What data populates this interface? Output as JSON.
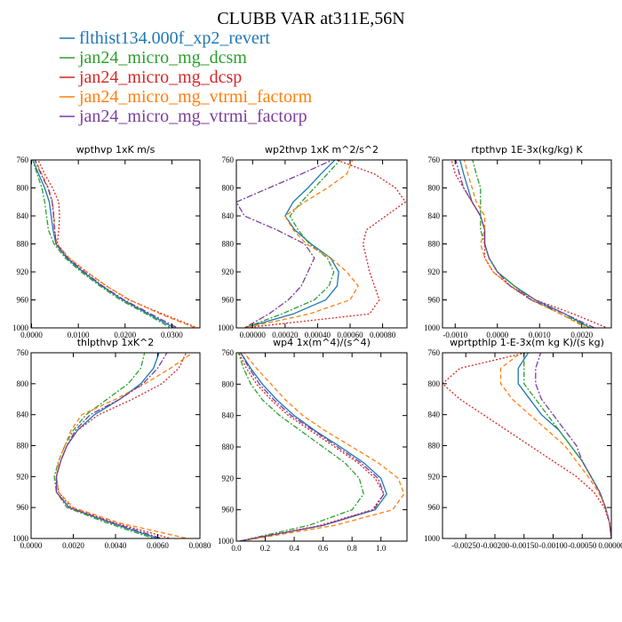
{
  "figure_title": "CLUBB VAR at311E,56N",
  "colors": {
    "flthist134.000f_xp2_revert": "#1f77b4",
    "jan24_micro_mg_dcsm": "#2ca02c",
    "jan24_micro_mg_dcsp": "#d62728",
    "jan24_micro_mg_vtrmi_factorm": "#ff7f0e",
    "jan24_micro_mg_vtrmi_factorp": "#7b3f9e"
  },
  "legend": [
    {
      "name": "flthist134.000f_xp2_revert",
      "color": "#1f77b4",
      "dash": ""
    },
    {
      "name": "jan24_micro_mg_dcsm",
      "color": "#2ca02c",
      "dash": "6,2,2,2"
    },
    {
      "name": "jan24_micro_mg_dcsp",
      "color": "#d62728",
      "dash": "2,2"
    },
    {
      "name": "jan24_micro_mg_vtrmi_factorm",
      "color": "#ff7f0e",
      "dash": "5,3"
    },
    {
      "name": "jan24_micro_mg_vtrmi_factorp",
      "color": "#7b3f9e",
      "dash": "7,2,2,2"
    }
  ],
  "chart_data": [
    {
      "type": "line",
      "title": "wpthvp  1xK m/s",
      "xlim": [
        -0.0001,
        0.036
      ],
      "ylim": [
        760,
        1000
      ],
      "y_reversed": true,
      "xticks": [
        0.0,
        0.01,
        0.02,
        0.03
      ],
      "xtick_labels": [
        "0.0000",
        "0.0100",
        "0.0200",
        "0.0300"
      ],
      "yticks": [
        760,
        800,
        840,
        880,
        920,
        960,
        1000
      ],
      "ytick_labels": [
        "760",
        "800",
        "840",
        "880",
        "920",
        "960",
        "1000"
      ],
      "y": [
        757,
        780,
        800,
        820,
        840,
        860,
        880,
        900,
        920,
        940,
        960,
        980,
        1000
      ],
      "series": [
        {
          "name": "flthist134.000f_xp2_revert",
          "x": [
            0.0001,
            0.0015,
            0.0028,
            0.0038,
            0.0042,
            0.0046,
            0.0052,
            0.0075,
            0.011,
            0.015,
            0.0195,
            0.025,
            0.0305
          ]
        },
        {
          "name": "jan24_micro_mg_dcsm",
          "x": [
            0.0001,
            0.0012,
            0.0022,
            0.0028,
            0.0032,
            0.0036,
            0.0048,
            0.0072,
            0.0106,
            0.0146,
            0.019,
            0.0245,
            0.0298
          ]
        },
        {
          "name": "jan24_micro_mg_dcsp",
          "x": [
            0.0012,
            0.0028,
            0.0045,
            0.0058,
            0.006,
            0.0058,
            0.0055,
            0.008,
            0.0118,
            0.016,
            0.0208,
            0.028,
            0.0355
          ]
        },
        {
          "name": "jan24_micro_mg_vtrmi_factorm",
          "x": [
            0.0006,
            0.0022,
            0.0036,
            0.0045,
            0.0048,
            0.005,
            0.0054,
            0.008,
            0.0118,
            0.016,
            0.021,
            0.0275,
            0.035
          ]
        },
        {
          "name": "jan24_micro_mg_vtrmi_factorp",
          "x": [
            0.0005,
            0.002,
            0.0035,
            0.0044,
            0.0047,
            0.0049,
            0.0053,
            0.0077,
            0.0113,
            0.0152,
            0.0198,
            0.0255,
            0.0312
          ]
        }
      ]
    },
    {
      "type": "line",
      "title": "wp2thvp  1xK m^2/s^2",
      "xlim": [
        -0.0001,
        0.00095
      ],
      "ylim": [
        760,
        1000
      ],
      "y_reversed": true,
      "xticks": [
        0.0,
        0.0002,
        0.0004,
        0.0006,
        0.0008
      ],
      "xtick_labels": [
        "0.00000",
        "0.00020",
        "0.00040",
        "0.00060",
        "0.00080"
      ],
      "yticks": [
        760,
        800,
        840,
        880,
        920,
        960,
        1000
      ],
      "ytick_labels": [
        "760",
        "800",
        "840",
        "880",
        "920",
        "960",
        "1000"
      ],
      "y": [
        757,
        780,
        800,
        820,
        840,
        860,
        880,
        900,
        920,
        940,
        960,
        980,
        1000
      ],
      "series": [
        {
          "name": "flthist134.000f_xp2_revert",
          "x": [
            0.00052,
            0.00042,
            0.00034,
            0.00025,
            0.0002,
            0.00026,
            0.00036,
            0.00048,
            0.00053,
            0.00052,
            0.00045,
            0.00025,
            -5e-05
          ]
        },
        {
          "name": "jan24_micro_mg_dcsm",
          "x": [
            0.00055,
            0.00046,
            0.00038,
            0.0003,
            0.00023,
            0.00028,
            0.00035,
            0.00046,
            0.0005,
            0.00047,
            0.00038,
            0.00018,
            -5e-05
          ]
        },
        {
          "name": "jan24_micro_mg_dcsp",
          "x": [
            0.00048,
            0.00075,
            0.00088,
            0.00094,
            0.00082,
            0.0007,
            0.00068,
            0.0007,
            0.00072,
            0.00075,
            0.00078,
            0.00072,
            -5e-05
          ]
        },
        {
          "name": "jan24_micro_mg_vtrmi_factorm",
          "x": [
            0.00062,
            0.00058,
            0.00046,
            0.00032,
            0.0002,
            0.00025,
            0.00033,
            0.00048,
            0.00058,
            0.00065,
            0.0006,
            0.00035,
            -5e-05
          ]
        },
        {
          "name": "jan24_micro_mg_vtrmi_factorp",
          "x": [
            0.00052,
            0.0003,
            0.0001,
            -0.0001,
            -5e-05,
            0.00015,
            0.00032,
            0.00038,
            0.00034,
            0.0003,
            0.00022,
            0.0001,
            -5e-05
          ]
        }
      ]
    },
    {
      "type": "line",
      "title": "rtpthvp  1E-3x(kg/kg) K",
      "xlim": [
        -0.0013,
        0.0027
      ],
      "ylim": [
        760,
        1000
      ],
      "y_reversed": true,
      "xticks": [
        -0.001,
        0.0,
        0.001,
        0.002
      ],
      "xtick_labels": [
        "-0.0010",
        "0.0000",
        "0.0010",
        "0.0020"
      ],
      "yticks": [
        760,
        800,
        840,
        880,
        920,
        960,
        1000
      ],
      "ytick_labels": [
        "760",
        "800",
        "840",
        "880",
        "920",
        "960",
        "1000"
      ],
      "y": [
        757,
        780,
        800,
        820,
        840,
        860,
        880,
        900,
        920,
        940,
        960,
        980,
        1000
      ],
      "series": [
        {
          "name": "flthist134.000f_xp2_revert",
          "x": [
            -0.0009,
            -0.0008,
            -0.0007,
            -0.0006,
            -0.0004,
            -0.0003,
            -0.0003,
            -0.0002,
            0.0,
            0.0004,
            0.0009,
            0.0016,
            0.0022
          ]
        },
        {
          "name": "jan24_micro_mg_dcsm",
          "x": [
            -0.0006,
            -0.0005,
            -0.0004,
            -0.0004,
            -0.0004,
            -0.0004,
            -0.0003,
            -0.0002,
            0.0,
            0.0004,
            0.0008,
            0.0015,
            0.0022
          ]
        },
        {
          "name": "jan24_micro_mg_dcsp",
          "x": [
            -0.0011,
            -0.001,
            -0.0008,
            -0.0006,
            -0.0004,
            -0.0003,
            -0.0003,
            -0.0003,
            -0.0001,
            0.0003,
            0.0009,
            0.0018,
            0.0026
          ]
        },
        {
          "name": "jan24_micro_mg_vtrmi_factorm",
          "x": [
            -0.0008,
            -0.0007,
            -0.0006,
            -0.0005,
            -0.0003,
            -0.0003,
            -0.0004,
            -0.0003,
            -0.0001,
            0.0003,
            0.0008,
            0.0015,
            0.0021
          ]
        },
        {
          "name": "jan24_micro_mg_vtrmi_factorp",
          "x": [
            -0.001,
            -0.0009,
            -0.0008,
            -0.0006,
            -0.0004,
            -0.0003,
            -0.0003,
            -0.0002,
            0.0,
            0.0003,
            0.0008,
            0.0016,
            0.0023
          ]
        }
      ]
    },
    {
      "type": "line",
      "title": "thlpthvp  1xK^2",
      "xlim": [
        0.0,
        0.008
      ],
      "ylim": [
        760,
        1000
      ],
      "y_reversed": true,
      "xticks": [
        0.0,
        0.002,
        0.004,
        0.006,
        0.008
      ],
      "xtick_labels": [
        "0.0000",
        "0.0020",
        "0.0040",
        "0.0060",
        "0.0080"
      ],
      "yticks": [
        760,
        800,
        840,
        880,
        920,
        960,
        1000
      ],
      "ytick_labels": [
        "760",
        "800",
        "840",
        "880",
        "920",
        "960",
        "1000"
      ],
      "y": [
        757,
        780,
        800,
        820,
        840,
        860,
        880,
        900,
        920,
        940,
        960,
        980,
        1000
      ],
      "series": [
        {
          "name": "flthist134.000f_xp2_revert",
          "x": [
            0.0061,
            0.0058,
            0.0052,
            0.0042,
            0.003,
            0.0022,
            0.0017,
            0.0014,
            0.0012,
            0.0012,
            0.0018,
            0.0038,
            0.006
          ]
        },
        {
          "name": "jan24_micro_mg_dcsm",
          "x": [
            0.0054,
            0.0052,
            0.0046,
            0.0036,
            0.0026,
            0.002,
            0.0016,
            0.0013,
            0.0011,
            0.0012,
            0.0017,
            0.0036,
            0.0058
          ]
        },
        {
          "name": "jan24_micro_mg_dcsp",
          "x": [
            0.0074,
            0.007,
            0.0062,
            0.0048,
            0.0032,
            0.0022,
            0.0017,
            0.0014,
            0.0012,
            0.0013,
            0.0019,
            0.004,
            0.0066
          ]
        },
        {
          "name": "jan24_micro_mg_vtrmi_factorm",
          "x": [
            0.0078,
            0.0066,
            0.0054,
            0.004,
            0.0024,
            0.0019,
            0.0016,
            0.0013,
            0.0012,
            0.0013,
            0.002,
            0.0042,
            0.0074
          ]
        },
        {
          "name": "jan24_micro_mg_vtrmi_factorp",
          "x": [
            0.0065,
            0.006,
            0.0053,
            0.0042,
            0.0028,
            0.0021,
            0.0017,
            0.0014,
            0.0012,
            0.0012,
            0.0018,
            0.0039,
            0.0062
          ]
        }
      ]
    },
    {
      "type": "line",
      "title": "wp4  1x(m^4)/(s^4)",
      "xlim": [
        0.0,
        1.18
      ],
      "ylim": [
        760,
        1000
      ],
      "y_reversed": true,
      "xticks": [
        0.0,
        0.2,
        0.4,
        0.6,
        0.8,
        1.0
      ],
      "xtick_labels": [
        "0.0",
        "0.2",
        "0.4",
        "0.6",
        "0.8",
        "1.0"
      ],
      "yticks": [
        760,
        800,
        840,
        880,
        920,
        960,
        1000
      ],
      "ytick_labels": [
        "760",
        "800",
        "840",
        "880",
        "920",
        "960",
        "1000"
      ],
      "y": [
        757,
        780,
        800,
        820,
        840,
        860,
        880,
        900,
        920,
        940,
        960,
        980,
        1000
      ],
      "series": [
        {
          "name": "flthist134.000f_xp2_revert",
          "x": [
            0.02,
            0.1,
            0.18,
            0.28,
            0.4,
            0.55,
            0.72,
            0.88,
            1.0,
            1.04,
            0.96,
            0.6,
            0.02
          ]
        },
        {
          "name": "jan24_micro_mg_dcsm",
          "x": [
            0.01,
            0.05,
            0.1,
            0.18,
            0.3,
            0.45,
            0.6,
            0.75,
            0.85,
            0.88,
            0.8,
            0.5,
            0.02
          ]
        },
        {
          "name": "jan24_micro_mg_dcsp",
          "x": [
            0.01,
            0.07,
            0.14,
            0.24,
            0.36,
            0.52,
            0.68,
            0.84,
            0.96,
            1.02,
            0.94,
            0.58,
            0.02
          ]
        },
        {
          "name": "jan24_micro_mg_vtrmi_factorm",
          "x": [
            0.04,
            0.14,
            0.24,
            0.34,
            0.46,
            0.62,
            0.8,
            0.98,
            1.12,
            1.16,
            1.08,
            0.68,
            0.03
          ]
        },
        {
          "name": "jan24_micro_mg_vtrmi_factorp",
          "x": [
            0.02,
            0.09,
            0.16,
            0.26,
            0.38,
            0.54,
            0.7,
            0.86,
            0.98,
            1.02,
            0.95,
            0.6,
            0.02
          ]
        }
      ]
    },
    {
      "type": "line",
      "title": "wprtpthlp  1-E-3x(m kg K)/(s kg)",
      "xlim": [
        -0.0029,
        0.0
      ],
      "ylim": [
        760,
        1000
      ],
      "y_reversed": true,
      "xticks": [
        -0.0025,
        -0.002,
        -0.0015,
        -0.001,
        -0.0005,
        0.0
      ],
      "xtick_labels": [
        "-0.00250",
        "-0.00200",
        "-0.00150",
        "-0.00100",
        "-0.00050",
        "0.00000"
      ],
      "yticks": [
        760,
        800,
        840,
        880,
        920,
        960,
        1000
      ],
      "ytick_labels": [
        "760",
        "800",
        "840",
        "880",
        "920",
        "960",
        "1000"
      ],
      "y": [
        757,
        780,
        800,
        820,
        840,
        860,
        880,
        900,
        920,
        940,
        960,
        980,
        1000
      ],
      "series": [
        {
          "name": "flthist134.000f_xp2_revert",
          "x": [
            -0.0014,
            -0.0016,
            -0.0016,
            -0.0014,
            -0.0012,
            -0.0009,
            -0.0007,
            -0.0005,
            -0.00035,
            -0.0002,
            -0.0001,
            -3e-05,
            0.0
          ]
        },
        {
          "name": "jan24_micro_mg_dcsm",
          "x": [
            -0.0015,
            -0.0015,
            -0.0015,
            -0.0013,
            -0.0011,
            -0.0009,
            -0.0007,
            -0.0005,
            -0.00035,
            -0.0002,
            -0.0001,
            -3e-05,
            0.0
          ]
        },
        {
          "name": "jan24_micro_mg_dcsp",
          "x": [
            -0.0013,
            -0.0026,
            -0.0029,
            -0.0026,
            -0.0022,
            -0.0018,
            -0.0014,
            -0.001,
            -0.0006,
            -0.0003,
            -0.00012,
            -3e-05,
            0.0
          ]
        },
        {
          "name": "jan24_micro_mg_vtrmi_factorm",
          "x": [
            -0.0015,
            -0.0019,
            -0.0019,
            -0.0017,
            -0.0014,
            -0.0011,
            -0.0008,
            -0.0006,
            -0.0004,
            -0.00022,
            -0.0001,
            -3e-05,
            0.0
          ]
        },
        {
          "name": "jan24_micro_mg_vtrmi_factorp",
          "x": [
            -0.0012,
            -0.0013,
            -0.0013,
            -0.0012,
            -0.001,
            -0.0008,
            -0.0006,
            -0.0005,
            -0.00035,
            -0.0002,
            -0.0001,
            -3e-05,
            0.0
          ]
        }
      ]
    }
  ]
}
